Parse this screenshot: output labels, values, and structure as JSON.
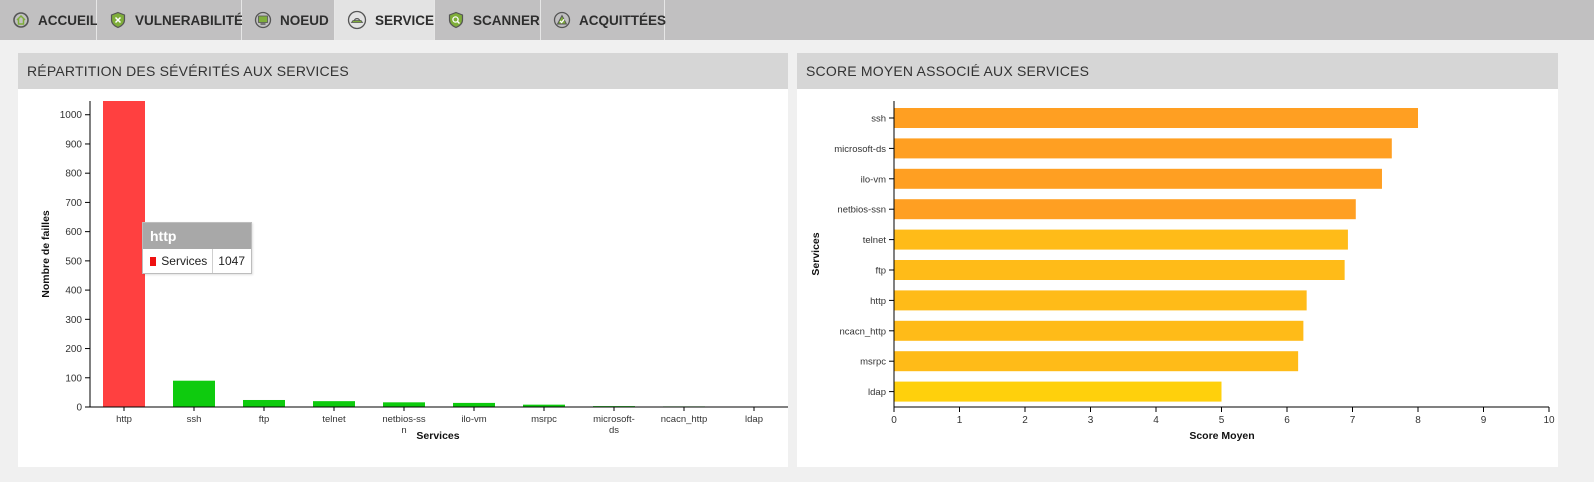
{
  "tabs": [
    {
      "label": "ACCUEIL",
      "icon": "home-icon",
      "active": false
    },
    {
      "label": "VULNERABILITÉS",
      "icon": "shield-icon",
      "active": false
    },
    {
      "label": "NOEUD",
      "icon": "monitor-icon",
      "active": false
    },
    {
      "label": "SERVICE",
      "icon": "service-icon",
      "active": true
    },
    {
      "label": "SCANNER",
      "icon": "scanner-icon",
      "active": false
    },
    {
      "label": "ACQUITTÉES",
      "icon": "check-icon",
      "active": false
    }
  ],
  "left_panel": {
    "title": "RÉPARTITION DES SÉVÉRITÉS AUX SERVICES"
  },
  "right_panel": {
    "title": "SCORE MOYEN ASSOCIÉ AUX SERVICES"
  },
  "tooltip": {
    "title": "http",
    "series": "Services",
    "value": "1047",
    "color": "#ee1111"
  },
  "chart_data": [
    {
      "type": "bar",
      "categories": [
        "http",
        "ssh",
        "ftp",
        "telnet",
        "netbios-ssn",
        "ilo-vm",
        "msrpc",
        "microsoft-ds",
        "ncacn_http",
        "ldap"
      ],
      "category_labels": [
        [
          "http"
        ],
        [
          "ssh"
        ],
        [
          "ftp"
        ],
        [
          "telnet"
        ],
        [
          "netbios-ss",
          "n"
        ],
        [
          "ilo-vm"
        ],
        [
          "msrpc"
        ],
        [
          "microsoft-",
          "ds"
        ],
        [
          "ncacn_http"
        ],
        [
          "ldap"
        ]
      ],
      "values": [
        1047,
        90,
        24,
        20,
        16,
        14,
        8,
        3,
        2,
        1
      ],
      "xlabel": "Services",
      "ylabel": "Nombre de failles",
      "ylim": [
        0,
        1047
      ],
      "yticks": [
        0,
        100,
        200,
        300,
        400,
        500,
        600,
        700,
        800,
        900,
        1000
      ],
      "colors": {
        "highlight": "#ff4040",
        "default": "#0ecb0e"
      },
      "grid": false
    },
    {
      "type": "bar",
      "orientation": "horizontal",
      "categories": [
        "ssh",
        "microsoft-ds",
        "ilo-vm",
        "netbios-ssn",
        "telnet",
        "ftp",
        "http",
        "ncacn_http",
        "msrpc",
        "ldap"
      ],
      "values": [
        8.0,
        7.6,
        7.45,
        7.05,
        6.93,
        6.88,
        6.3,
        6.25,
        6.17,
        5.0
      ],
      "colors": [
        "#ff9f22",
        "#ff9f22",
        "#ff9f22",
        "#ff9f22",
        "#ffbb18",
        "#ffbb18",
        "#ffbb18",
        "#ffbb18",
        "#ffbb18",
        "#ffd00c"
      ],
      "xlabel": "Score Moyen",
      "ylabel": "Services",
      "xlim": [
        0,
        10
      ],
      "xticks": [
        0,
        1,
        2,
        3,
        4,
        5,
        6,
        7,
        8,
        9,
        10
      ],
      "grid": false
    }
  ]
}
